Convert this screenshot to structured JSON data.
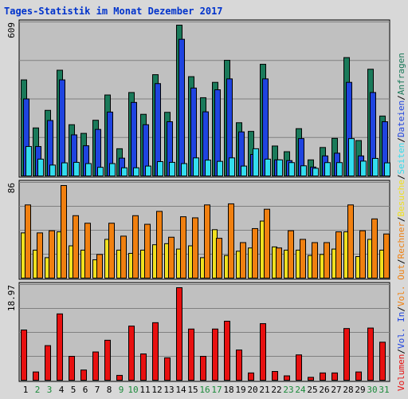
{
  "title": "Tages-Statistik im Monat Dezember 2017",
  "colors": {
    "anfragen": "#1a7a5a",
    "dateien": "#1f44e0",
    "seiten": "#33ddee",
    "besuche": "#f0e020",
    "rechner": "#f08010",
    "volumen": "#e81010",
    "weekday_label": "#000000",
    "weekend_label": "#1a8a3a",
    "panel_bg": "#c0c0c0"
  },
  "legend": {
    "anfragen": "Anfragen",
    "dateien": "Dateien",
    "seiten": "Seiten",
    "besuche": "Besuche",
    "rechner": "Rechner",
    "vol_out": "Vol. Out",
    "vol_in": "Vol. In",
    "volumen": "Volumen",
    "sep": "/"
  },
  "chart_data": [
    {
      "type": "bar",
      "panel": "top",
      "ymax_label": "609",
      "ylim": [
        0,
        609
      ],
      "categories": [
        "1",
        "2",
        "3",
        "4",
        "5",
        "6",
        "7",
        "8",
        "9",
        "10",
        "11",
        "12",
        "13",
        "14",
        "15",
        "16",
        "17",
        "18",
        "19",
        "20",
        "21",
        "22",
        "23",
        "24",
        "25",
        "26",
        "27",
        "28",
        "29",
        "30",
        "31"
      ],
      "weekend_days": [
        "2",
        "3",
        "9",
        "10",
        "16",
        "17",
        "23",
        "24",
        "30",
        "31"
      ],
      "series": [
        {
          "name": "Anfragen",
          "values": [
            388,
            194,
            265,
            427,
            207,
            172,
            225,
            327,
            110,
            337,
            249,
            409,
            257,
            609,
            401,
            316,
            378,
            467,
            215,
            180,
            451,
            121,
            98,
            191,
            65,
            115,
            152,
            478,
            143,
            431,
            242
          ]
        },
        {
          "name": "Dateien",
          "values": [
            311,
            119,
            224,
            388,
            166,
            122,
            188,
            258,
            72,
            297,
            207,
            373,
            219,
            552,
            355,
            259,
            348,
            392,
            178,
            87,
            392,
            65,
            62,
            151,
            36,
            81,
            92,
            378,
            81,
            337,
            219
          ]
        },
        {
          "name": "Seiten",
          "values": [
            119,
            68,
            44,
            53,
            55,
            50,
            35,
            50,
            33,
            33,
            40,
            58,
            55,
            50,
            73,
            64,
            59,
            73,
            40,
            110,
            68,
            65,
            54,
            41,
            31,
            54,
            54,
            151,
            60,
            71,
            53
          ]
        }
      ]
    },
    {
      "type": "bar",
      "panel": "middle",
      "ymax_label": "86",
      "ylim": [
        0,
        86
      ],
      "categories": [
        "1",
        "2",
        "3",
        "4",
        "5",
        "6",
        "7",
        "8",
        "9",
        "10",
        "11",
        "12",
        "13",
        "14",
        "15",
        "16",
        "17",
        "18",
        "19",
        "20",
        "21",
        "22",
        "23",
        "24",
        "25",
        "26",
        "27",
        "28",
        "29",
        "30",
        "31"
      ],
      "series": [
        {
          "name": "Besuche",
          "values": [
            42,
            26,
            19,
            43,
            30,
            26,
            17,
            36,
            26,
            23,
            26,
            31,
            32,
            27,
            30,
            19,
            45,
            21,
            25,
            28,
            53,
            29,
            26,
            26,
            21,
            22,
            27,
            43,
            20,
            36,
            26
          ]
        },
        {
          "name": "Rechner",
          "values": [
            68,
            42,
            44,
            86,
            58,
            51,
            22,
            51,
            39,
            58,
            50,
            62,
            38,
            57,
            56,
            68,
            37,
            69,
            33,
            46,
            64,
            28,
            44,
            36,
            33,
            33,
            43,
            68,
            44,
            55,
            41
          ]
        }
      ]
    },
    {
      "type": "bar",
      "panel": "bottom",
      "ymax_label": "18.97",
      "ylim": [
        0,
        18.97
      ],
      "categories": [
        "1",
        "2",
        "3",
        "4",
        "5",
        "6",
        "7",
        "8",
        "9",
        "10",
        "11",
        "12",
        "13",
        "14",
        "15",
        "16",
        "17",
        "18",
        "19",
        "20",
        "21",
        "22",
        "23",
        "24",
        "25",
        "26",
        "27",
        "28",
        "29",
        "30",
        "31"
      ],
      "series": [
        {
          "name": "Volumen",
          "values": [
            10.3,
            1.7,
            7.1,
            13.6,
            4.9,
            2.1,
            5.8,
            8.2,
            1.0,
            11.1,
            5.4,
            11.8,
            4.6,
            18.97,
            10.5,
            4.9,
            10.5,
            12.1,
            6.2,
            1.5,
            11.6,
            1.8,
            0.9,
            5.2,
            0.6,
            1.5,
            1.5,
            10.6,
            1.7,
            10.7,
            7.8
          ]
        }
      ]
    }
  ]
}
